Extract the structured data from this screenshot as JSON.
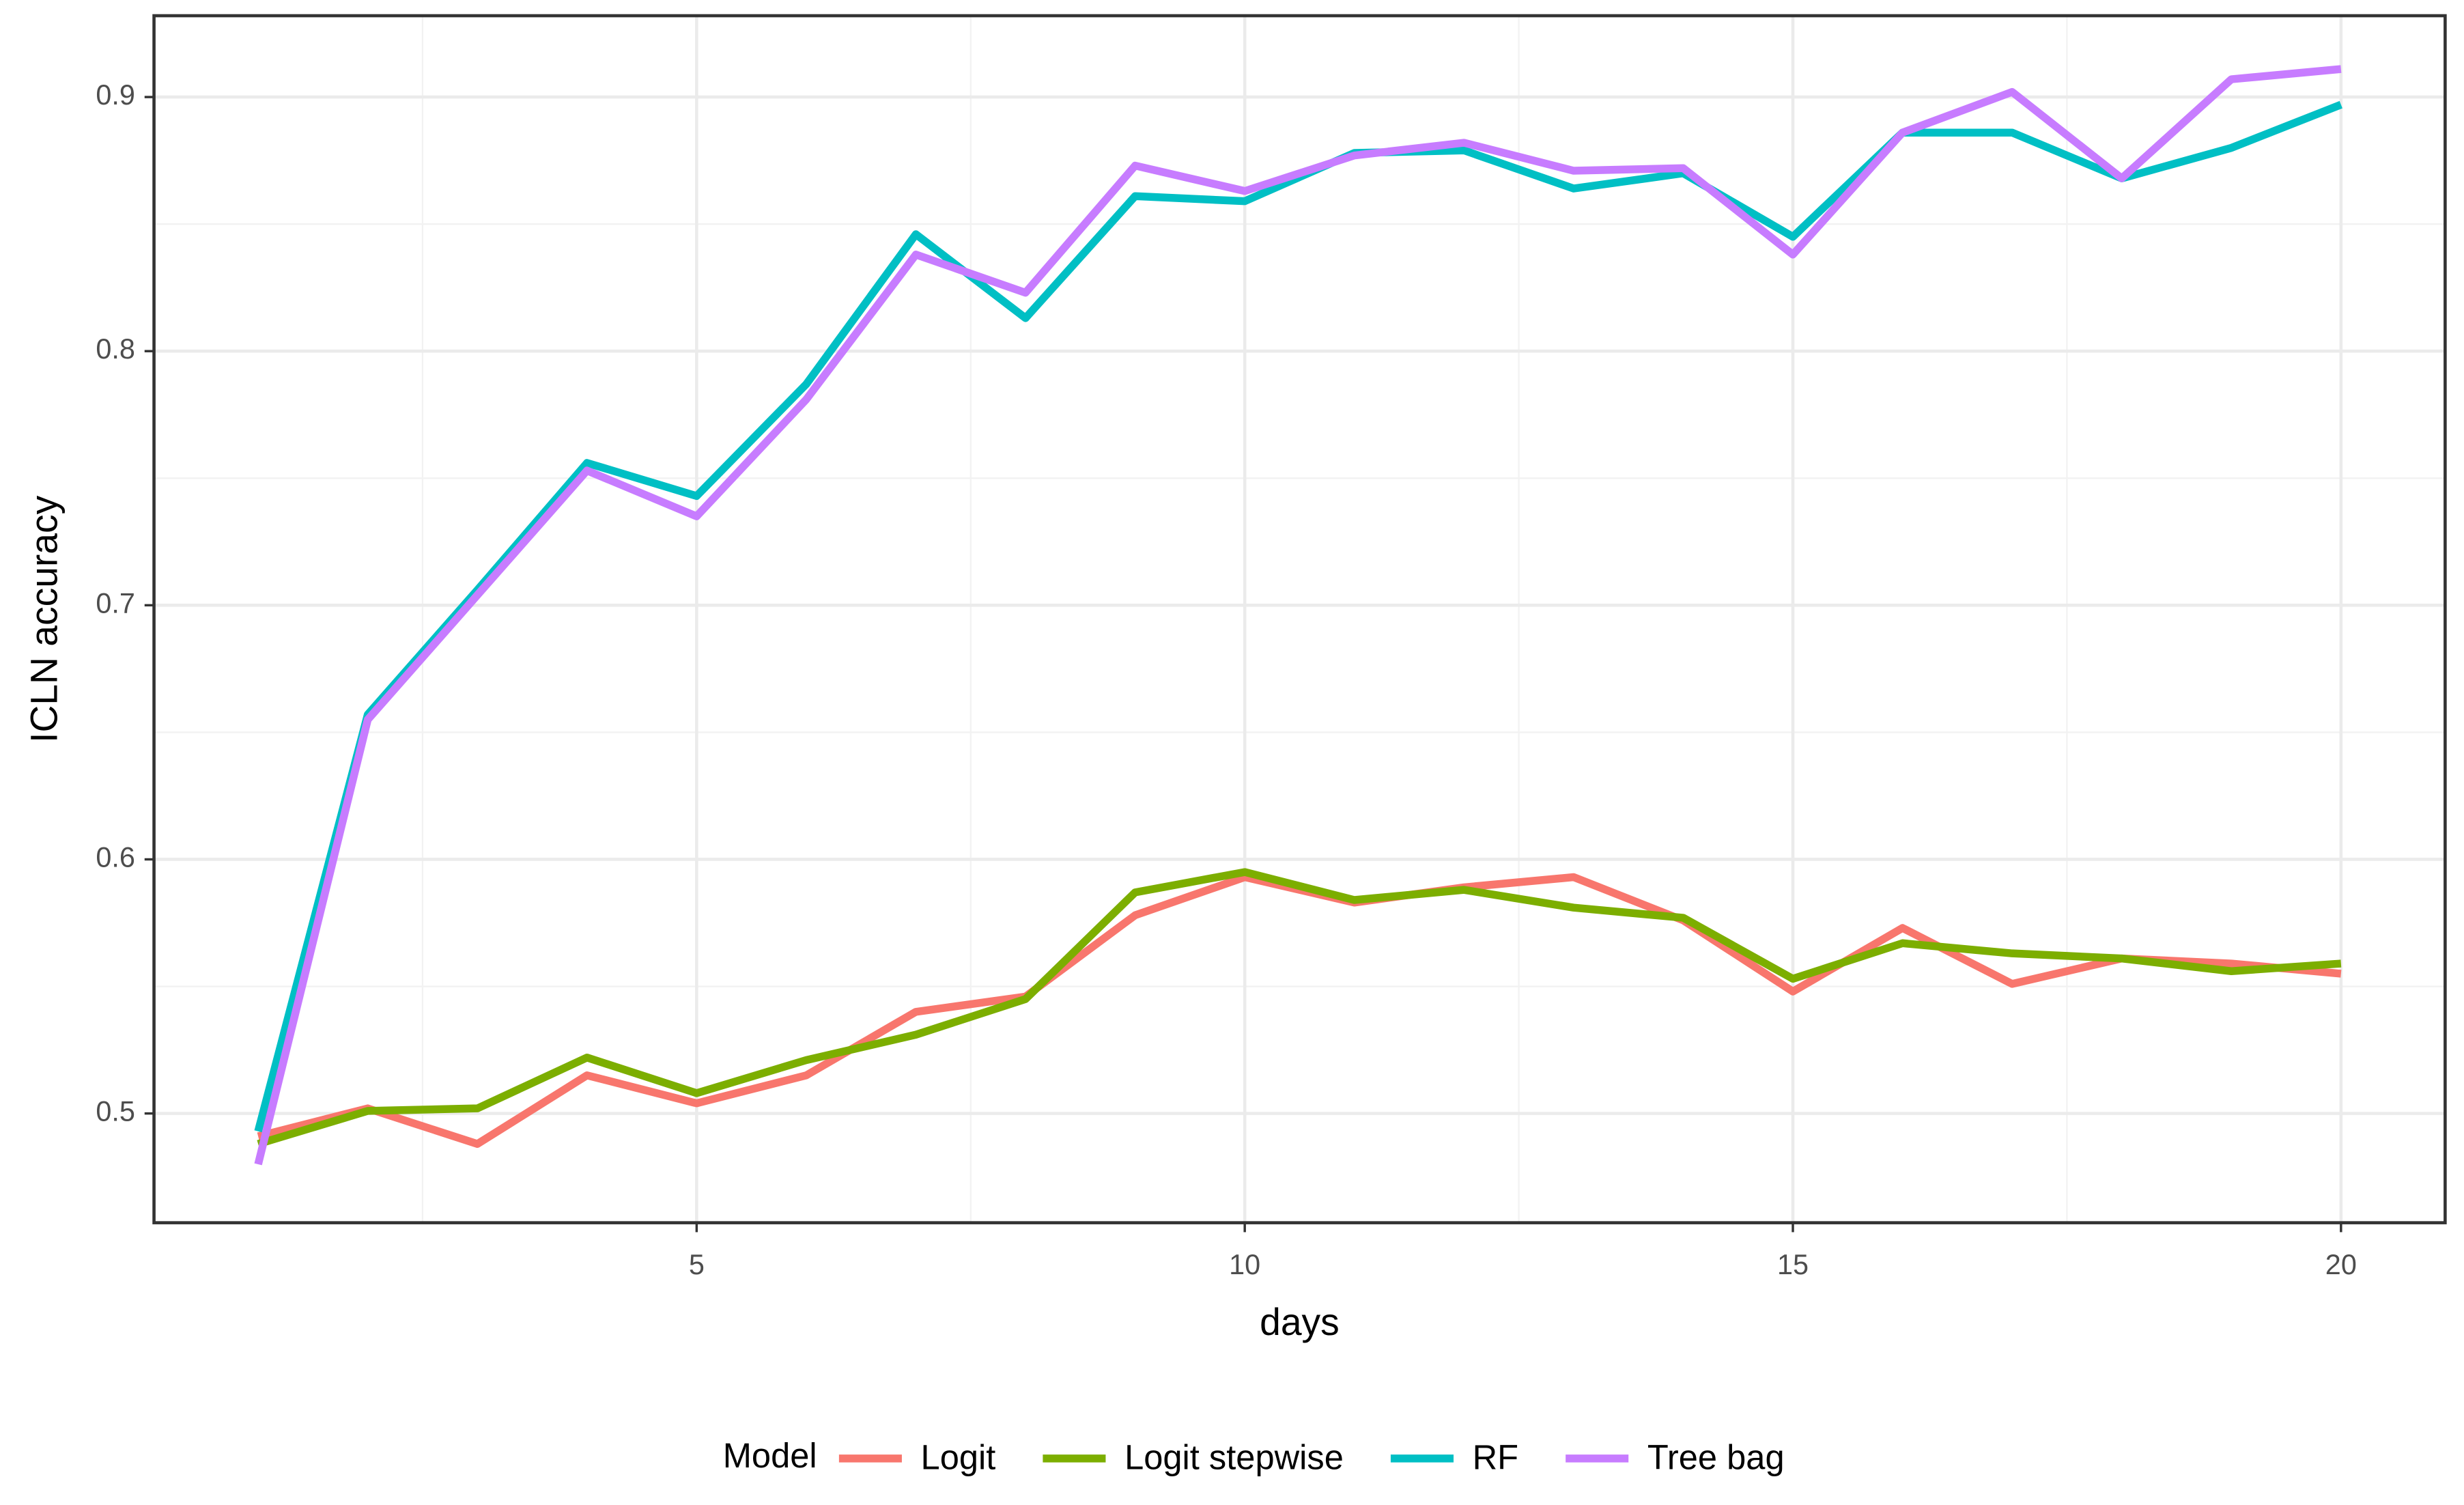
{
  "chart_data": {
    "type": "line",
    "x_label": "days",
    "y_label": "ICLN accuracy",
    "x": [
      1,
      2,
      3,
      4,
      5,
      6,
      7,
      8,
      9,
      10,
      11,
      12,
      13,
      14,
      15,
      16,
      17,
      18,
      19,
      20
    ],
    "series": [
      {
        "name": "Logit",
        "color": "#f8766d",
        "values": [
          0.491,
          0.502,
          0.488,
          0.515,
          0.504,
          0.515,
          0.54,
          0.546,
          0.578,
          0.593,
          0.583,
          0.589,
          0.593,
          0.576,
          0.548,
          0.573,
          0.551,
          0.561,
          0.559,
          0.555
        ]
      },
      {
        "name": "Logit stepwise",
        "color": "#7cae00",
        "values": [
          0.488,
          0.501,
          0.502,
          0.522,
          0.508,
          0.521,
          0.531,
          0.545,
          0.587,
          0.595,
          0.584,
          0.588,
          0.581,
          0.577,
          0.553,
          0.567,
          0.563,
          0.561,
          0.556,
          0.559
        ]
      },
      {
        "name": "RF",
        "color": "#00bfc4",
        "values": [
          0.493,
          0.657,
          0.706,
          0.756,
          0.743,
          0.787,
          0.846,
          0.813,
          0.861,
          0.859,
          0.878,
          0.879,
          0.864,
          0.87,
          0.845,
          0.886,
          0.886,
          0.868,
          0.88,
          0.897
        ]
      },
      {
        "name": "Tree bag",
        "color": "#c77cff",
        "values": [
          0.48,
          0.655,
          0.704,
          0.753,
          0.735,
          0.781,
          0.838,
          0.823,
          0.873,
          0.863,
          0.877,
          0.882,
          0.871,
          0.872,
          0.838,
          0.886,
          0.902,
          0.868,
          0.907,
          0.911
        ]
      }
    ],
    "xlim": [
      0.05,
      20.95
    ],
    "ylim": [
      0.457,
      0.932
    ],
    "xticks": [
      5,
      10,
      15,
      20
    ],
    "yticks": [
      0.5,
      0.6,
      0.7,
      0.8,
      0.9
    ],
    "grid": true,
    "legend_title": "Model",
    "legend_position": "bottom"
  }
}
